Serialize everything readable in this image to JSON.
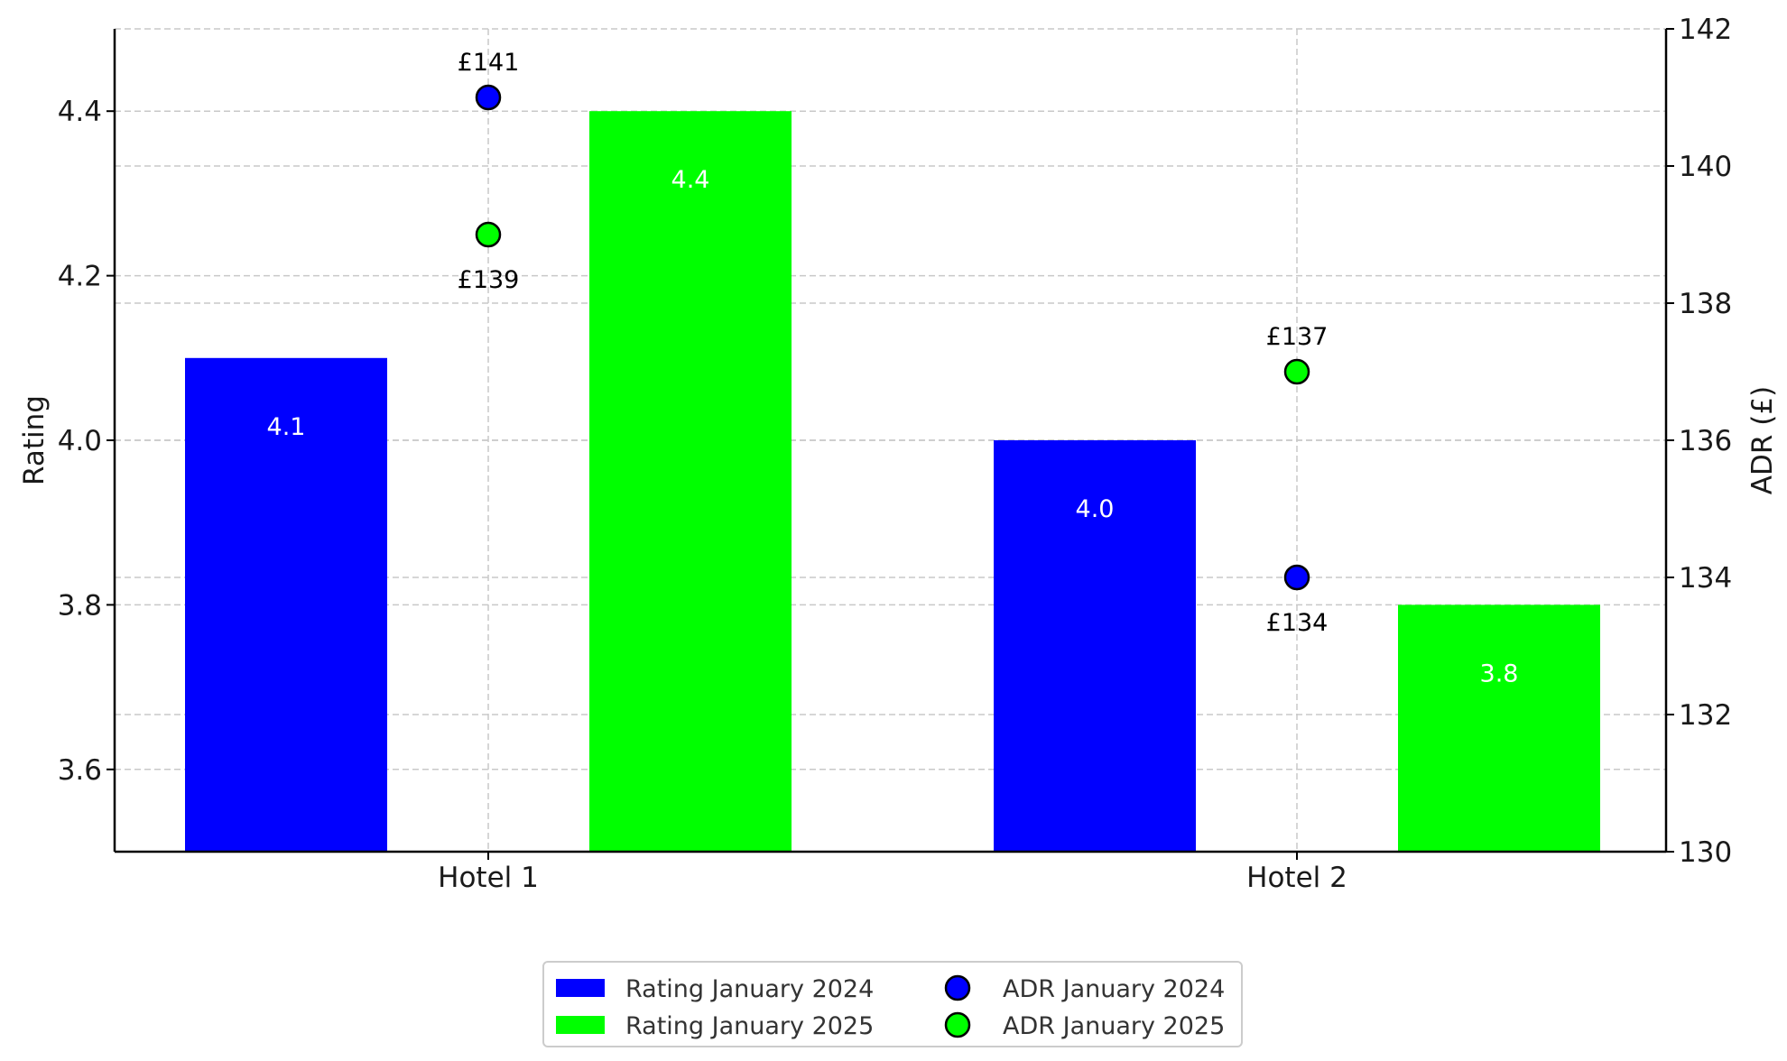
{
  "chart_data": {
    "type": "bar",
    "categories": [
      "Hotel 1",
      "Hotel 2"
    ],
    "ylabel": "Rating",
    "y2label": "ADR (£)",
    "ylim": [
      3.5,
      4.5
    ],
    "y2lim": [
      130,
      142
    ],
    "yticks": [
      "3.6",
      "3.8",
      "4.0",
      "4.2",
      "4.4"
    ],
    "y2ticks": [
      "130",
      "132",
      "134",
      "136",
      "138",
      "140",
      "142"
    ],
    "grid": true,
    "legend_position": "bottom-center",
    "series": [
      {
        "name": "Rating January 2024",
        "kind": "bar",
        "axis": "left",
        "color": "#0000ff",
        "values": [
          4.1,
          4.0
        ],
        "labels": [
          "4.1",
          "4.0"
        ]
      },
      {
        "name": "Rating January 2025",
        "kind": "bar",
        "axis": "left",
        "color": "#00ff00",
        "values": [
          4.4,
          3.8
        ],
        "labels": [
          "4.4",
          "3.8"
        ]
      },
      {
        "name": "ADR January 2024",
        "kind": "scatter",
        "axis": "right",
        "color": "#0000ff",
        "values": [
          141,
          134
        ],
        "labels": [
          "£141",
          "£134"
        ]
      },
      {
        "name": "ADR January 2025",
        "kind": "scatter",
        "axis": "right",
        "color": "#00ff00",
        "values": [
          139,
          137
        ],
        "labels": [
          "£139",
          "£137"
        ]
      }
    ]
  }
}
